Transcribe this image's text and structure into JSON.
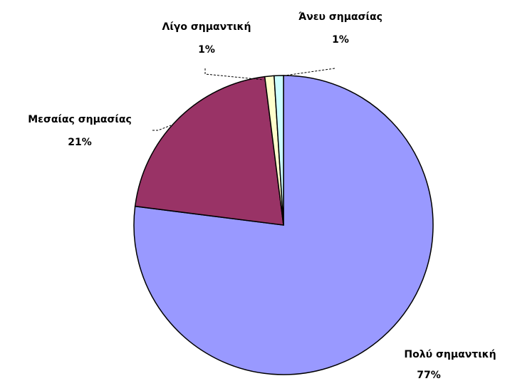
{
  "chart_data": {
    "type": "pie",
    "categories": [
      "Πολύ σημαντική",
      "Μεσαίας σημασίας",
      "Λίγο σημαντική",
      "Άνευ σημασίας"
    ],
    "values": [
      77,
      21,
      1,
      1
    ],
    "value_labels": [
      "77%",
      "21%",
      "1%",
      "1%"
    ],
    "colors": [
      "#9999ff",
      "#993366",
      "#ffffcc",
      "#ccffff"
    ]
  }
}
